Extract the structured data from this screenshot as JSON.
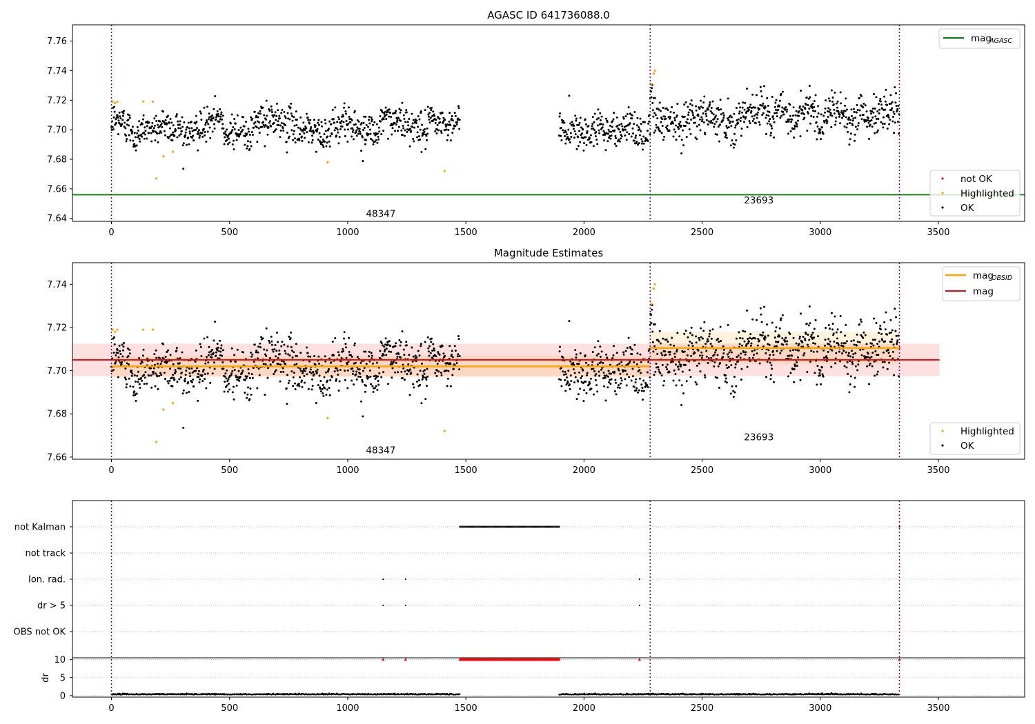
{
  "chart_data": [
    {
      "type": "scatter",
      "title": "AGASC ID 641736088.0",
      "xlim": [
        -165,
        3865
      ],
      "ylim": [
        7.638,
        7.771
      ],
      "x_ticks": [
        "0",
        "500",
        "1000",
        "1500",
        "2000",
        "2500",
        "3000",
        "3500"
      ],
      "y_ticks": [
        "7.64",
        "7.66",
        "7.68",
        "7.70",
        "7.72",
        "7.74",
        "7.76"
      ],
      "vlines": [
        0,
        2280,
        3335
      ],
      "obsid_labels": [
        {
          "text": "48347",
          "x": 1140,
          "y": 7.643
        },
        {
          "text": "23693",
          "x": 2740,
          "y": 7.652
        }
      ],
      "reference_line": {
        "name": "mag_AGASC",
        "value": 7.656,
        "color": "#008000"
      },
      "legend_top": {
        "label": "mag",
        "sub": "AGASC"
      },
      "legend_bottom": [
        "not OK",
        "Highlighted",
        "OK"
      ],
      "segments": [
        {
          "x_start": 0,
          "x_end": 1475,
          "mean": 7.7025,
          "sd": 0.0055
        },
        {
          "x_start": 1895,
          "x_end": 2280,
          "mean": 7.702,
          "sd": 0.006
        },
        {
          "x_start": 2280,
          "x_end": 3335,
          "mean": 7.7105,
          "sd": 0.0065
        }
      ],
      "highlighted_points": [
        [
          5,
          7.719
        ],
        [
          15,
          7.718
        ],
        [
          25,
          7.719
        ],
        [
          135,
          7.719
        ],
        [
          175,
          7.719
        ],
        [
          190,
          7.667
        ],
        [
          220,
          7.682
        ],
        [
          260,
          7.685
        ],
        [
          915,
          7.678
        ],
        [
          1410,
          7.672
        ],
        [
          2285,
          7.731
        ],
        [
          2295,
          7.738
        ],
        [
          2300,
          7.74
        ]
      ],
      "colors": {
        "ok": "#000000",
        "highlighted": "#ffa500",
        "not_ok": "#ff0000",
        "vline": "#800080"
      }
    },
    {
      "type": "scatter",
      "title": "Magnitude Estimates",
      "xlim": [
        -165,
        3865
      ],
      "ylim": [
        7.659,
        7.75
      ],
      "x_ticks": [
        "0",
        "500",
        "1000",
        "1500",
        "2000",
        "2500",
        "3000",
        "3500"
      ],
      "y_ticks": [
        "7.66",
        "7.68",
        "7.70",
        "7.72",
        "7.74"
      ],
      "vlines": [
        0,
        2280,
        3335
      ],
      "obsid_labels": [
        {
          "text": "48347",
          "x": 1140,
          "y": 7.663
        },
        {
          "text": "23693",
          "x": 2740,
          "y": 7.669
        }
      ],
      "mag_line": {
        "name": "mag",
        "value": 7.705,
        "band": [
          7.6975,
          7.7125
        ],
        "x_range": [
          -165,
          3505
        ],
        "color": "#ff0000"
      },
      "mag_obsid": [
        {
          "x": [
            0,
            2280
          ],
          "value": 7.702,
          "band": [
            7.697,
            7.707
          ]
        },
        {
          "x": [
            2280,
            3335
          ],
          "value": 7.7105,
          "band": [
            7.703,
            7.718
          ]
        }
      ],
      "legend_top": [
        {
          "label": "mag",
          "sub": "OBSID"
        },
        {
          "label": "mag"
        }
      ],
      "legend_bottom": [
        "Highlighted",
        "OK"
      ]
    },
    {
      "type": "scatter",
      "title": "",
      "flag_rows": [
        "not Kalman",
        "not track",
        "Ion. rad.",
        "dr > 5",
        "OBS not OK"
      ],
      "flags": {
        "not Kalman": {
          "ranges": [
            [
              1475,
              1895
            ]
          ],
          "points": [
            3335
          ]
        },
        "not track": {
          "ranges": [],
          "points": []
        },
        "Ion. rad.": {
          "ranges": [],
          "points": [
            1150,
            1245,
            2235
          ]
        },
        "dr > 5": {
          "ranges": [],
          "points": [
            1150,
            1245,
            2235
          ]
        },
        "OBS not OK": {
          "ranges": [],
          "points": []
        }
      },
      "dr": {
        "ylabel": "dr",
        "y_ticks": [
          "0",
          "5",
          "10"
        ],
        "ylim": [
          -0.4,
          10.5
        ],
        "clip_value": 10,
        "clipped_ranges": [
          [
            1475,
            1895
          ]
        ],
        "clipped_points": [
          1150,
          1245,
          2235,
          3335
        ],
        "baseline": 0.3
      },
      "x_ticks": [
        "0",
        "500",
        "1000",
        "1500",
        "2000",
        "2500",
        "3000",
        "3500"
      ],
      "vlines": [
        0,
        2280,
        3335
      ]
    }
  ]
}
